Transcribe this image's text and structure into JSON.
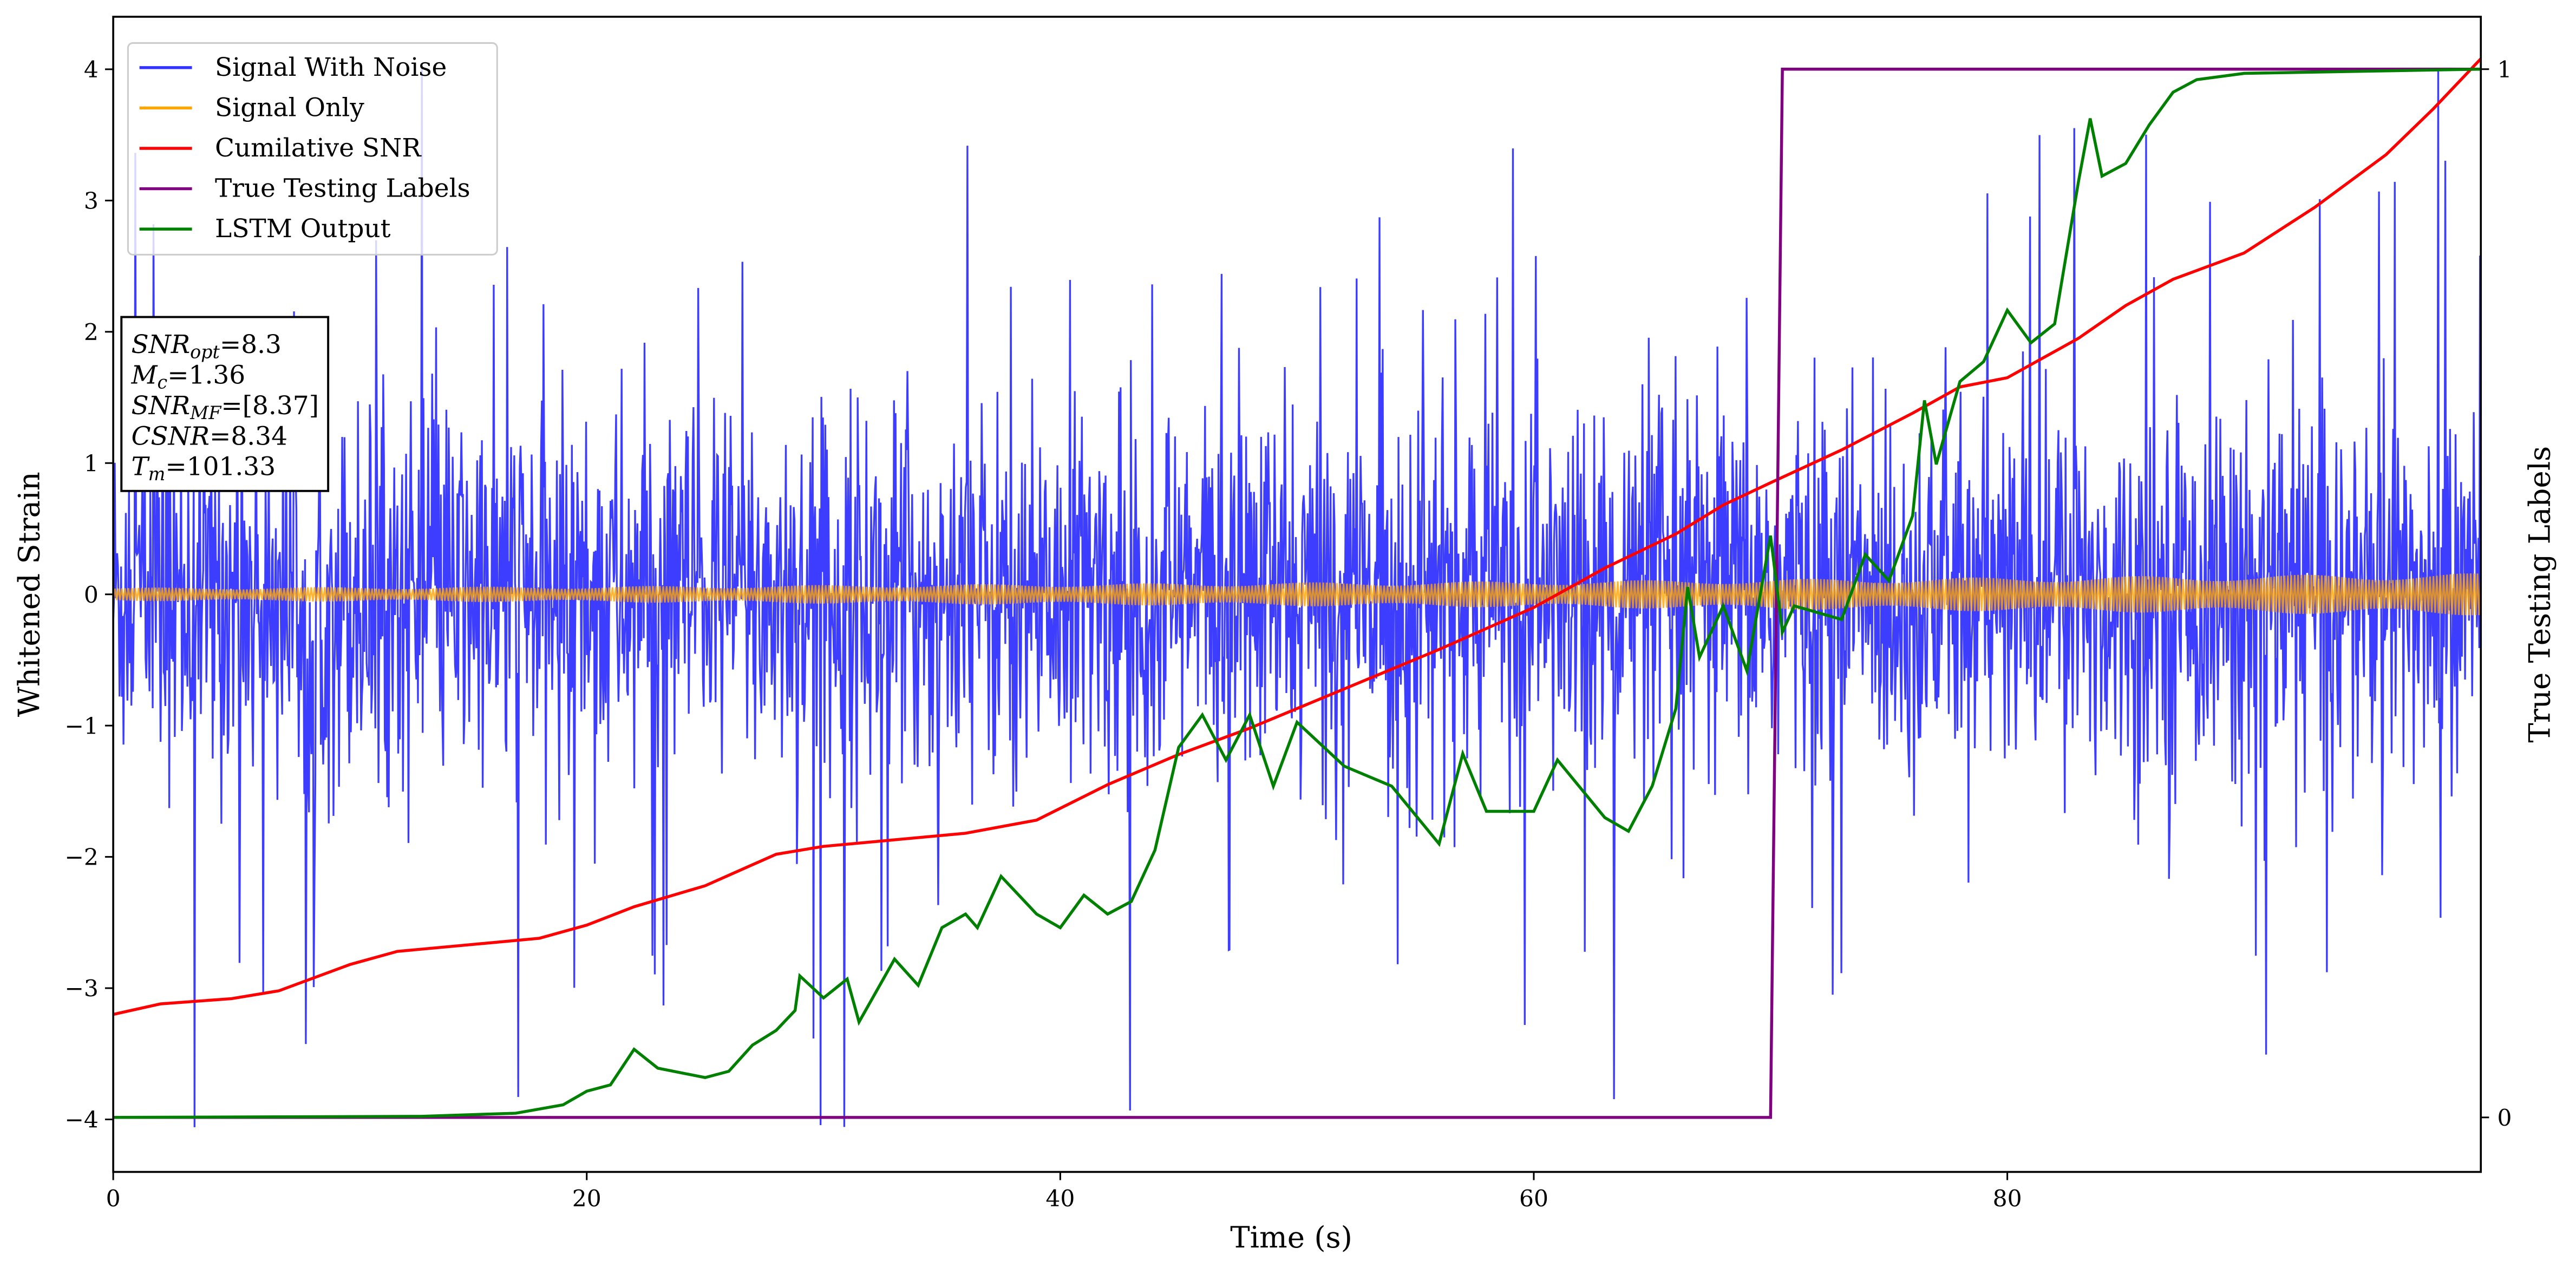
{
  "chart_data": {
    "type": "line",
    "xlabel": "Time (s)",
    "ylabel": "Whitened Strain",
    "y2label": "True Testing Labels",
    "xlim": [
      0,
      100
    ],
    "ylim": [
      -4.4,
      4.4
    ],
    "y2lim": [
      -0.052,
      1.05
    ],
    "xticks": [
      0,
      20,
      40,
      60,
      80
    ],
    "yticks": [
      -4,
      -3,
      -2,
      -1,
      0,
      1,
      2,
      3,
      4
    ],
    "y2ticks": [
      0,
      1
    ],
    "grid": false,
    "legend_position": "top-left",
    "colors": {
      "signal_with_noise": "#3333ff",
      "signal_only": "#ffa500",
      "cumulative_snr": "#ff0000",
      "true_labels": "#800080",
      "lstm_output": "#008000"
    },
    "legend": [
      "Signal With Noise",
      "Signal Only",
      "Cumilative SNR",
      "True Testing Labels",
      "LSTM Output"
    ],
    "series": [
      {
        "name": "Signal With Noise",
        "axis": "left",
        "kind": "noise",
        "std": 0.72,
        "spike_max": 4.1,
        "samples": 3000
      },
      {
        "name": "Signal Only",
        "axis": "left",
        "kind": "chirp-envelope",
        "x": [
          0,
          20,
          40,
          60,
          80,
          100
        ],
        "amplitude": [
          0.05,
          0.06,
          0.08,
          0.1,
          0.13,
          0.16
        ]
      },
      {
        "name": "Cumilative SNR",
        "axis": "left",
        "x": [
          0,
          2,
          5,
          7,
          10,
          12,
          15,
          18,
          20,
          22,
          25,
          28,
          30,
          33,
          36,
          39,
          42,
          45,
          48,
          52,
          56,
          60,
          63,
          66,
          68,
          70,
          73,
          76,
          78,
          80,
          81,
          83,
          85,
          87,
          90,
          93,
          96,
          98,
          100
        ],
        "y": [
          -3.2,
          -3.12,
          -3.08,
          -3.02,
          -2.82,
          -2.72,
          -2.67,
          -2.62,
          -2.52,
          -2.38,
          -2.22,
          -1.98,
          -1.92,
          -1.87,
          -1.82,
          -1.72,
          -1.45,
          -1.22,
          -1.02,
          -0.72,
          -0.42,
          -0.1,
          0.2,
          0.46,
          0.68,
          0.85,
          1.1,
          1.38,
          1.58,
          1.65,
          1.75,
          1.95,
          2.2,
          2.4,
          2.6,
          2.95,
          3.35,
          3.7,
          4.08
        ]
      },
      {
        "name": "True Testing Labels",
        "axis": "right",
        "x": [
          0,
          70,
          70.5,
          100
        ],
        "y": [
          0,
          0,
          1,
          1
        ]
      },
      {
        "name": "LSTM Output",
        "axis": "right",
        "x": [
          0,
          13,
          17,
          19,
          20,
          21,
          22,
          23,
          25,
          26,
          27,
          28,
          28.8,
          29,
          30,
          31,
          31.5,
          33,
          34,
          35,
          36,
          36.5,
          37.5,
          39,
          40,
          41,
          42,
          43,
          44,
          45,
          46,
          47,
          48,
          49,
          50,
          52,
          54,
          56,
          57,
          58,
          60,
          61,
          63,
          64,
          65,
          66,
          66.5,
          67,
          68,
          69,
          70,
          70.5,
          71,
          73,
          74,
          75,
          76,
          76.5,
          77,
          78,
          79,
          80,
          81,
          82,
          83,
          83.5,
          84,
          85,
          86,
          87,
          88,
          90,
          100
        ],
        "y": [
          0,
          0.001,
          0.004,
          0.012,
          0.025,
          0.031,
          0.065,
          0.047,
          0.038,
          0.044,
          0.069,
          0.083,
          0.102,
          0.135,
          0.114,
          0.132,
          0.091,
          0.151,
          0.126,
          0.181,
          0.194,
          0.181,
          0.23,
          0.194,
          0.181,
          0.212,
          0.194,
          0.206,
          0.255,
          0.353,
          0.384,
          0.341,
          0.384,
          0.316,
          0.377,
          0.335,
          0.316,
          0.261,
          0.347,
          0.292,
          0.292,
          0.341,
          0.286,
          0.273,
          0.316,
          0.39,
          0.506,
          0.439,
          0.488,
          0.426,
          0.555,
          0.463,
          0.488,
          0.475,
          0.537,
          0.512,
          0.574,
          0.684,
          0.623,
          0.702,
          0.721,
          0.77,
          0.739,
          0.757,
          0.892,
          0.953,
          0.898,
          0.91,
          0.947,
          0.978,
          0.99,
          0.996,
          1
        ]
      }
    ],
    "annotation_box": [
      {
        "name": "SNR",
        "sub": "opt",
        "value": "=8.3"
      },
      {
        "name": "M",
        "sub": "c",
        "value": "=1.36"
      },
      {
        "name": "SNR",
        "sub": "MF",
        "value": "=[8.37]"
      },
      {
        "name": "CSNR",
        "sub": "",
        "value": "=8.34"
      },
      {
        "name": "T",
        "sub": "m",
        "value": "=101.33"
      }
    ]
  }
}
